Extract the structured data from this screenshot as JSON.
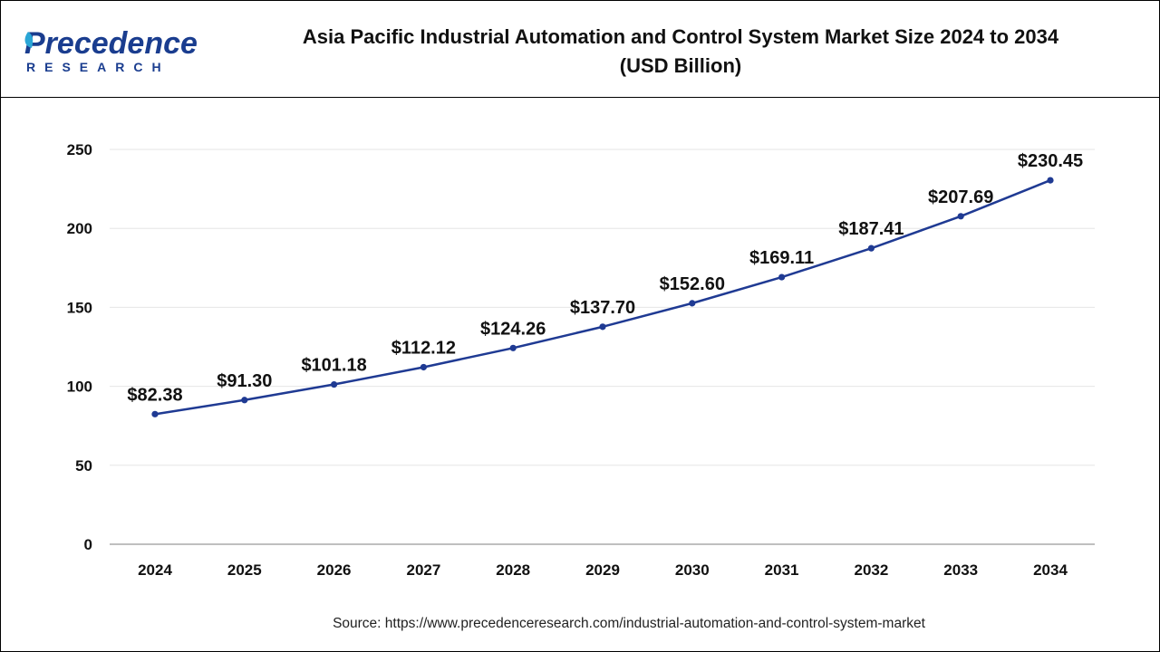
{
  "brand": {
    "name": "Precedence",
    "sub": "RESEARCH",
    "primary_color": "#1a3d8f",
    "accent_color": "#2aa6d6"
  },
  "header": {
    "title_line1": "Asia Pacific Industrial Automation and Control System Market Size 2024 to 2034",
    "title_line2": "(USD Billion)"
  },
  "source": "Source: https://www.precedenceresearch.com/industrial-automation-and-control-system-market",
  "chart_data": {
    "type": "line",
    "title": "Asia Pacific Industrial Automation and Control System Market Size 2024 to 2034 (USD Billion)",
    "categories": [
      "2024",
      "2025",
      "2026",
      "2027",
      "2028",
      "2029",
      "2030",
      "2031",
      "2032",
      "2033",
      "2034"
    ],
    "series": [
      {
        "values": [
          82.38,
          91.3,
          101.18,
          112.12,
          124.26,
          137.7,
          152.6,
          169.11,
          187.41,
          207.69,
          230.45
        ],
        "labels": [
          "$82.38",
          "$91.30",
          "$101.18",
          "$112.12",
          "$124.26",
          "$137.70",
          "$152.60",
          "$169.11",
          "$187.41",
          "$207.69",
          "$230.45"
        ],
        "color": "#1f3a93"
      }
    ],
    "ylim": [
      0,
      250
    ],
    "yticks": [
      0,
      50,
      100,
      150,
      200,
      250
    ],
    "grid": true,
    "legend": "none"
  }
}
